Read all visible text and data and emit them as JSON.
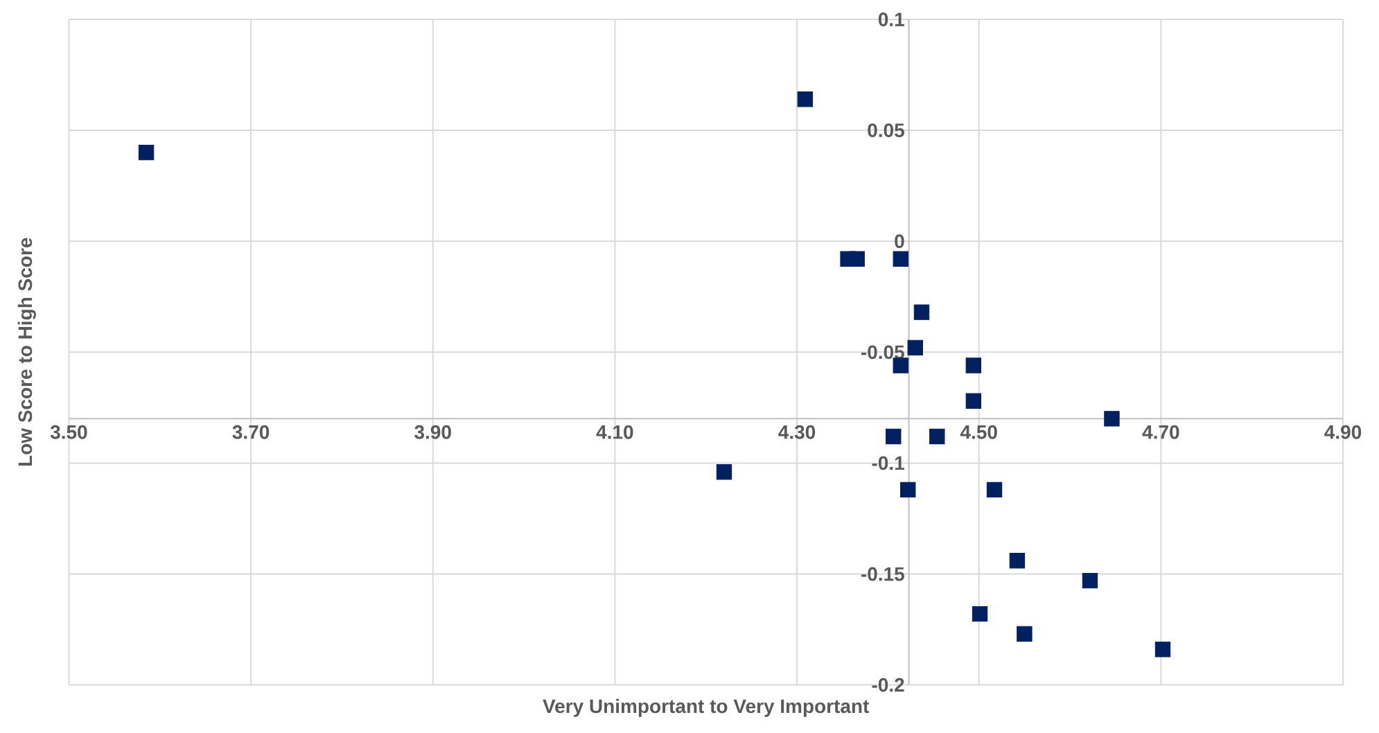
{
  "chart_data": {
    "type": "scatter",
    "xlabel": "Very Unimportant to Very Important",
    "ylabel": "Low Score to High Score",
    "x": [
      3.585,
      4.309,
      4.356,
      4.366,
      4.414,
      4.437,
      4.43,
      4.414,
      4.494,
      4.494,
      4.646,
      4.406,
      4.454,
      4.22,
      4.422,
      4.517,
      4.542,
      4.622,
      4.501,
      4.55,
      4.702
    ],
    "values": [
      0.04,
      0.064,
      -0.008,
      -0.008,
      -0.008,
      -0.032,
      -0.048,
      -0.056,
      -0.056,
      -0.072,
      -0.08,
      -0.088,
      -0.088,
      -0.104,
      -0.112,
      -0.112,
      -0.144,
      -0.153,
      -0.168,
      -0.177,
      -0.184
    ],
    "color": "#002060",
    "marker": "square",
    "grid": true,
    "xlim": [
      3.5,
      4.9
    ],
    "ylim": [
      -0.2,
      0.1
    ],
    "xticks": [
      {
        "value": 3.5,
        "label": "3.50"
      },
      {
        "value": 3.7,
        "label": "3.70"
      },
      {
        "value": 3.9,
        "label": "3.90"
      },
      {
        "value": 4.1,
        "label": "4.10"
      },
      {
        "value": 4.3,
        "label": "4.30"
      },
      {
        "value": 4.5,
        "label": "4.50"
      },
      {
        "value": 4.7,
        "label": "4.70"
      },
      {
        "value": 4.9,
        "label": "4.90"
      }
    ],
    "yticks": [
      0.1,
      0.05,
      0,
      -0.05,
      -0.1,
      -0.15,
      -0.2
    ]
  }
}
